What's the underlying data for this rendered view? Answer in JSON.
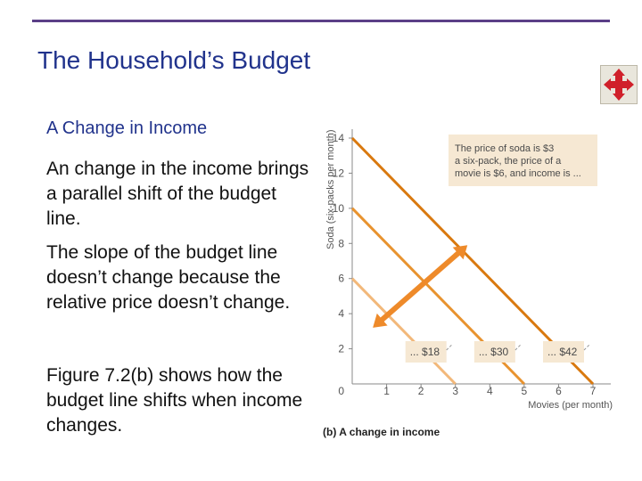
{
  "slide": {
    "title": "The Household’s Budget",
    "subheading": "A Change in Income",
    "paragraphs": [
      "An change in the income brings a parallel shift of the budget line.",
      "The slope of the budget line doesn’t change because the relative price doesn’t change.",
      "Figure 7.2(b) shows how the budget line shifts when income changes."
    ],
    "nav_icon": "move-arrows-icon"
  },
  "chart_data": {
    "type": "line",
    "caption": "(b) A change in income",
    "xlabel": "Movies (per month)",
    "ylabel": "Soda (six-packs per month)",
    "xlim": [
      0,
      7
    ],
    "ylim": [
      0,
      14
    ],
    "xticks": [
      0,
      1,
      2,
      3,
      4,
      5,
      6,
      7
    ],
    "yticks": [
      2,
      4,
      6,
      8,
      10,
      12,
      14
    ],
    "annotation": "The price of soda is $3 a six-pack, the price of a movie is $6, and income is ...",
    "series": [
      {
        "name": "... $18",
        "color": "#f2b87a",
        "x": [
          0,
          3
        ],
        "y": [
          6,
          0
        ]
      },
      {
        "name": "... $30",
        "color": "#e8932f",
        "x": [
          0,
          5
        ],
        "y": [
          10,
          0
        ]
      },
      {
        "name": "... $42",
        "color": "#d9790f",
        "x": [
          0,
          7
        ],
        "y": [
          14,
          0
        ]
      }
    ],
    "arrow_color": "#ee8a2a"
  }
}
